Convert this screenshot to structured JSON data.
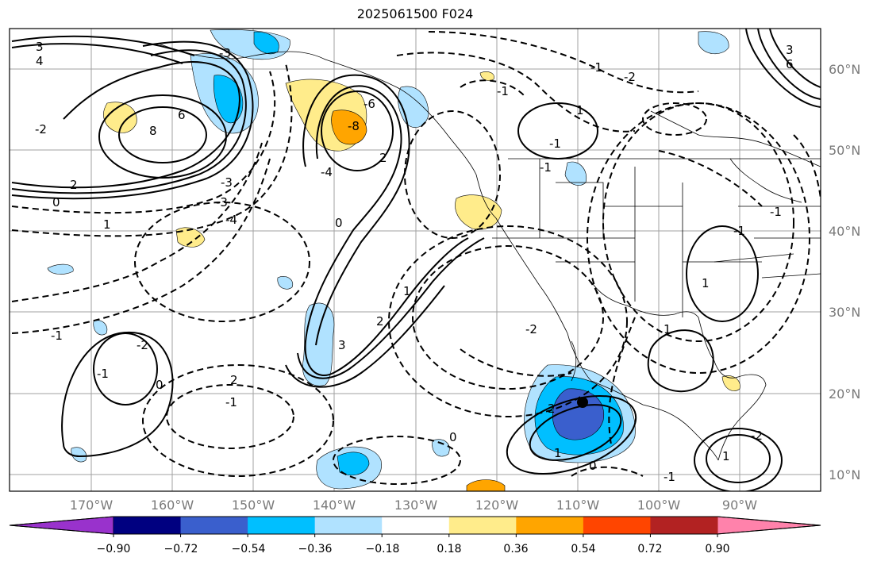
{
  "title": "2025061500 F024",
  "lat_labels": [
    "60°N",
    "50°N",
    "40°N",
    "30°N",
    "20°N",
    "10°N"
  ],
  "lon_labels": [
    "170°W",
    "160°W",
    "150°W",
    "140°W",
    "130°W",
    "120°W",
    "110°W",
    "100°W",
    "90°W"
  ],
  "colorbar": {
    "colors": [
      "#9932cc",
      "#000080",
      "#3a5fcd",
      "#00bfff",
      "#b0e2ff",
      "#ffffff",
      "#ffec8b",
      "#ffa500",
      "#ff4500",
      "#b22222",
      "#ff82ab"
    ],
    "tick_labels": [
      "−0.90",
      "−0.72",
      "−0.54",
      "−0.36",
      "−0.18",
      "0.18",
      "0.36",
      "0.54",
      "0.72",
      "0.90"
    ]
  },
  "contour_labels": [
    "3",
    "4",
    "6",
    "2",
    "1",
    "0",
    "-1",
    "-2",
    "-3",
    "-4",
    "-6",
    "-8",
    "8",
    "0",
    "1",
    "2",
    "3",
    "-3",
    "6",
    "-1",
    "-2",
    "-2",
    "-1",
    "-1",
    "-1",
    "-1",
    "-2",
    "-1",
    "0",
    "1",
    "2",
    "-2",
    "1",
    "-3",
    "2",
    "3",
    "-4",
    "-1",
    "0",
    "-1",
    "1",
    "-1",
    "0",
    "1",
    "2",
    "1"
  ],
  "colors": {
    "land_border": "#000000",
    "grid": "#a0a0a0",
    "fill_strong_neg": "#3a5fcd",
    "fill_mid_neg": "#00bfff",
    "fill_weak_neg": "#b0e2ff",
    "fill_weak_pos": "#ffec8b",
    "fill_mid_pos": "#ffa500"
  }
}
